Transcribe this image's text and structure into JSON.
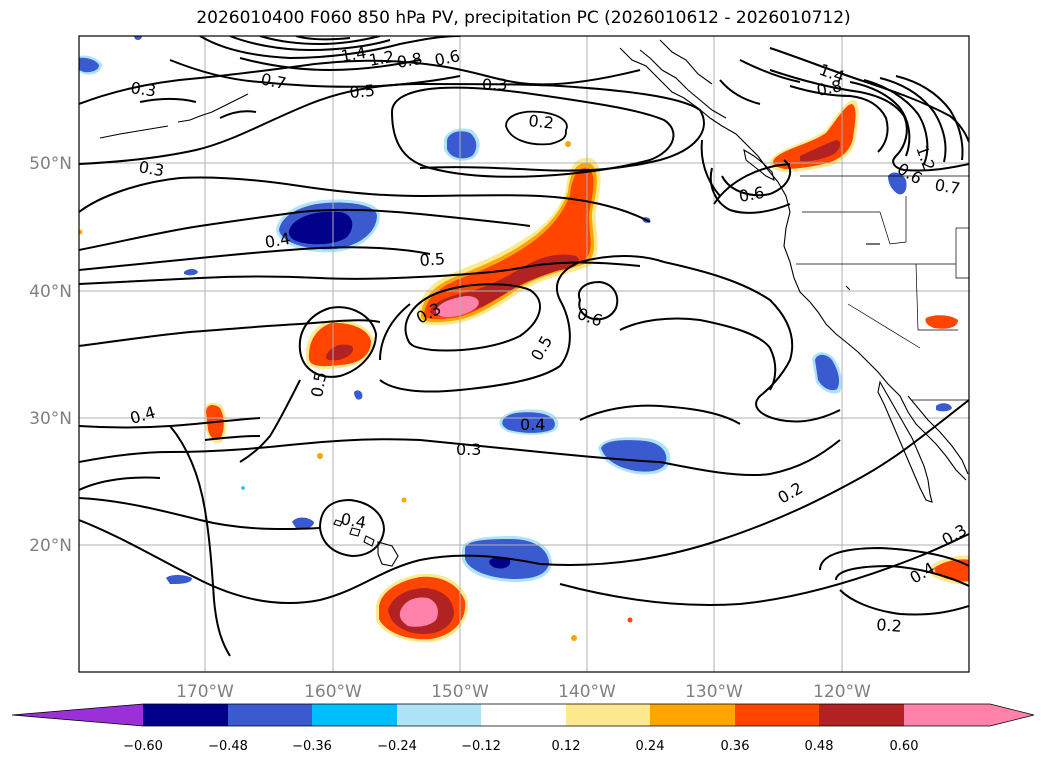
{
  "title": "2026010400 F060 850 hPa PV, precipitation PC (2026010612 - 2026010712)",
  "lon_ticks": [
    "170°W",
    "160°W",
    "150°W",
    "140°W",
    "130°W",
    "120°W"
  ],
  "lat_ticks": [
    "50°N",
    "40°N",
    "30°N",
    "20°N"
  ],
  "contour_labels": [
    "0.3",
    "0.7",
    "0.5",
    "0.6",
    "1.4",
    "1.2",
    "0.8",
    "0.3",
    "0.2",
    "0.3",
    "0.4",
    "0.5",
    "0.3",
    "0.6",
    "0.5",
    "0.6",
    "0.5",
    "0.4",
    "0.4",
    "0.3",
    "0.2",
    "0.4",
    "0.4",
    "0.3",
    "0.2",
    "1.4",
    "0.8",
    "1.2",
    "0.6",
    "0.7"
  ],
  "colorbar": {
    "tick_labels": [
      "−0.60",
      "−0.48",
      "−0.36",
      "−0.24",
      "−0.12",
      "0.12",
      "0.24",
      "0.36",
      "0.48",
      "0.60"
    ],
    "colors": [
      "#9b30d9",
      "#00008b",
      "#3a5ad0",
      "#00bfff",
      "#aee3f8",
      "#ffffff",
      "#fde98e",
      "#ffa500",
      "#ff4500",
      "#b22222",
      "#ff82ab",
      "#ff82ab"
    ]
  }
}
